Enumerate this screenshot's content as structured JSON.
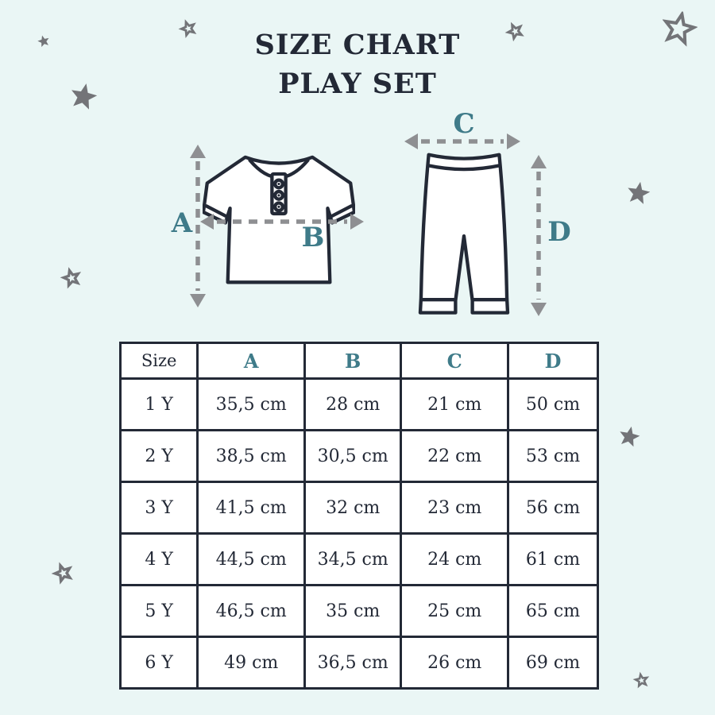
{
  "title": {
    "line1": "SIZE CHART",
    "line2": "PLAY SET"
  },
  "diagram": {
    "labels": {
      "a": "A",
      "b": "B",
      "c": "C",
      "d": "D"
    },
    "garments": {
      "top": "t-shirt",
      "bottom": "pants"
    }
  },
  "table": {
    "columns": [
      "Size",
      "A",
      "B",
      "C",
      "D"
    ],
    "rows": [
      [
        "1 Y",
        "35,5 cm",
        "28 cm",
        "21 cm",
        "50 cm"
      ],
      [
        "2 Y",
        "38,5 cm",
        "30,5 cm",
        "22 cm",
        "53 cm"
      ],
      [
        "3 Y",
        "41,5 cm",
        "32 cm",
        "23 cm",
        "56 cm"
      ],
      [
        "4 Y",
        "44,5 cm",
        "34,5 cm",
        "24 cm",
        "61 cm"
      ],
      [
        "5 Y",
        "46,5 cm",
        "35 cm",
        "25 cm",
        "65 cm"
      ],
      [
        "6 Y",
        "49 cm",
        "36,5 cm",
        "26 cm",
        "69 cm"
      ]
    ]
  },
  "chart_data": {
    "type": "table",
    "title": "SIZE CHART PLAY SET",
    "columns": [
      "Size",
      "A",
      "B",
      "C",
      "D"
    ],
    "units": "cm",
    "rows": [
      {
        "size": "1 Y",
        "A": 35.5,
        "B": 28,
        "C": 21,
        "D": 50
      },
      {
        "size": "2 Y",
        "A": 38.5,
        "B": 30.5,
        "C": 22,
        "D": 53
      },
      {
        "size": "3 Y",
        "A": 41.5,
        "B": 32,
        "C": 23,
        "D": 56
      },
      {
        "size": "4 Y",
        "A": 44.5,
        "B": 34.5,
        "C": 24,
        "D": 61
      },
      {
        "size": "5 Y",
        "A": 46.5,
        "B": 35,
        "C": 25,
        "D": 65
      },
      {
        "size": "6 Y",
        "A": 49,
        "B": 36.5,
        "C": 26,
        "D": 69
      }
    ]
  },
  "icons": {
    "star": "star-icon"
  },
  "colors": {
    "background": "#eaf6f5",
    "ink": "#232936",
    "teal_accent": "#3f7b89",
    "star_gray": "#737478",
    "arrow_gray": "#8e8f92",
    "cell_background": "#ffffff"
  }
}
